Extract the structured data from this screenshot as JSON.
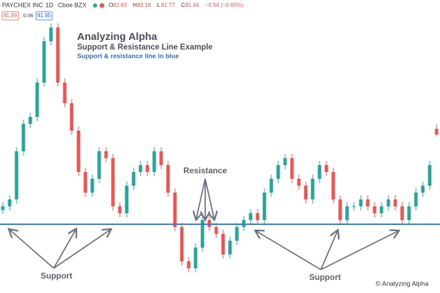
{
  "chart_data": {
    "type": "candlestick",
    "symbol": "PAYCHEX INC",
    "interval": "1D",
    "exchange": "Cboe BZX",
    "bid": 81.89,
    "spread": 0.06,
    "ask": 81.95,
    "ohlc_labels": [
      "O",
      "H",
      "L",
      "C"
    ],
    "change": "−0.54 (−0.65%)",
    "title": "Analyzing Alpha",
    "subtitle": "Support & Resistance Line Example",
    "note": "Support & resistance line in blue",
    "annotations": {
      "resistance": "Resistance",
      "support_left": "Support",
      "support_right": "Support"
    },
    "credit": "© Analyzing Alpha",
    "ylim": [
      63.4,
      96.4
    ],
    "support_level": 71.07,
    "up_color": "#26a69a",
    "down_color": "#ef5350",
    "line_color": "#2f7fd4",
    "open": [
      72.8,
      73.23,
      74.07,
      79.9,
      83.23,
      84.07,
      88.23,
      93.23,
      94.9,
      88.23,
      85.73,
      82.4,
      77.4,
      74.9,
      76.57,
      79.9,
      79.07,
      73.23,
      72.4,
      75.73,
      77.4,
      78.23,
      77.4,
      79.9,
      78.23,
      74.9,
      70.73,
      66.57,
      65.73,
      68.23,
      71.57,
      70.73,
      69.9,
      67.4,
      69.07,
      70.73,
      71.57,
      72.4,
      71.57,
      74.9,
      76.57,
      78.23,
      79.07,
      76.57,
      75.73,
      74.07,
      76.57,
      78.23,
      77.4,
      74.07,
      71.57,
      73.23,
      73.23,
      74.07,
      73.23,
      72.4,
      73.23,
      74.07,
      73.23,
      71.57,
      73.23,
      74.9,
      75.73,
      82.63
    ],
    "high": [
      73.73,
      74.57,
      80.4,
      83.73,
      84.57,
      88.73,
      93.73,
      95.4,
      95.4,
      88.73,
      86.23,
      82.9,
      77.9,
      77.07,
      80.4,
      80.4,
      79.57,
      73.73,
      76.23,
      77.9,
      78.73,
      78.73,
      80.4,
      80.4,
      78.73,
      75.4,
      71.23,
      67.07,
      68.73,
      72.07,
      72.07,
      71.23,
      70.4,
      69.57,
      71.23,
      72.07,
      72.9,
      72.9,
      75.4,
      77.07,
      78.73,
      79.57,
      79.57,
      77.07,
      76.23,
      77.07,
      78.73,
      78.73,
      77.9,
      74.57,
      73.73,
      73.73,
      74.57,
      74.57,
      73.73,
      73.73,
      74.57,
      74.57,
      73.73,
      73.73,
      75.4,
      76.23,
      78.73,
      83.18
    ],
    "low": [
      72.3,
      72.73,
      73.57,
      79.4,
      82.73,
      83.57,
      87.73,
      92.73,
      87.73,
      85.23,
      81.9,
      76.9,
      74.4,
      74.4,
      76.07,
      78.57,
      72.73,
      71.9,
      71.9,
      75.23,
      76.9,
      76.9,
      76.9,
      77.73,
      74.4,
      70.23,
      66.07,
      65.23,
      65.23,
      67.73,
      70.23,
      69.4,
      66.9,
      66.9,
      68.57,
      70.23,
      71.07,
      71.07,
      71.07,
      74.4,
      76.07,
      77.73,
      76.07,
      75.23,
      73.57,
      73.57,
      76.07,
      76.9,
      73.57,
      71.07,
      71.07,
      72.73,
      72.73,
      72.73,
      71.9,
      71.9,
      72.73,
      72.73,
      71.07,
      71.07,
      72.73,
      74.4,
      75.23,
      81.77
    ],
    "close": [
      73.23,
      74.07,
      79.9,
      83.23,
      84.07,
      88.23,
      93.23,
      94.9,
      88.23,
      85.73,
      82.4,
      77.4,
      74.9,
      76.57,
      79.9,
      79.07,
      73.23,
      72.4,
      75.73,
      77.4,
      78.23,
      77.4,
      79.9,
      78.23,
      74.9,
      70.73,
      66.57,
      65.73,
      68.23,
      71.57,
      70.73,
      69.9,
      67.4,
      69.07,
      70.73,
      71.57,
      72.4,
      71.57,
      74.9,
      76.57,
      78.23,
      79.07,
      76.57,
      75.73,
      74.07,
      76.57,
      78.23,
      77.4,
      74.07,
      71.57,
      73.23,
      73.23,
      74.07,
      73.23,
      72.4,
      73.23,
      74.07,
      73.23,
      71.57,
      73.23,
      74.9,
      75.73,
      78.23,
      81.94
    ]
  }
}
